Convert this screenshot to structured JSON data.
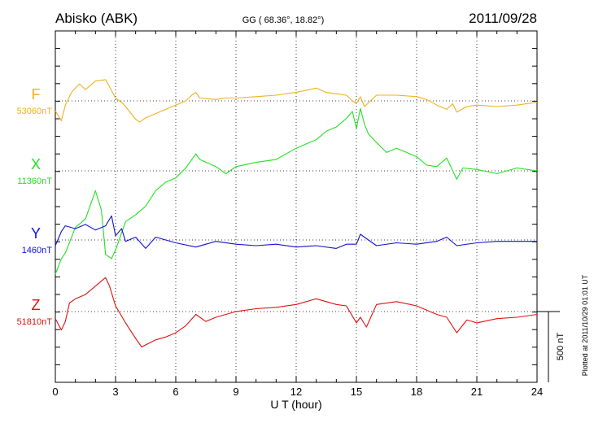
{
  "header": {
    "station": "Abisko (ABK)",
    "coords": "GG ( 68.36°,  18.82°)",
    "date": "2011/09/28"
  },
  "footer": {
    "plotted": "Plotted at 2011/10/29 01:01  UT",
    "scale_label": "500 nT"
  },
  "colors": {
    "F": "#f0b020",
    "X": "#22e022",
    "Y": "#1010d0",
    "Z": "#e01010",
    "axis": "#000000"
  },
  "chart_data": {
    "type": "line",
    "title": "Abisko (ABK)",
    "xlabel": "U T (hour)",
    "ylabel": "",
    "xlim": [
      0,
      24
    ],
    "xticks": [
      0,
      3,
      6,
      9,
      12,
      15,
      18,
      21,
      24
    ],
    "grid": true,
    "scale_bar_nT": 500,
    "series": [
      {
        "name": "F",
        "baseline_label": "53060nT",
        "x": [
          0,
          0.3,
          0.5,
          0.8,
          1.2,
          1.5,
          2.0,
          2.5,
          2.7,
          3.0,
          3.3,
          3.5,
          4.0,
          4.2,
          4.5,
          5.0,
          5.5,
          6.0,
          6.5,
          6.8,
          7.0,
          7.2,
          8.0,
          8.5,
          9.0,
          10.0,
          11.0,
          12.0,
          13.0,
          13.5,
          14.0,
          14.5,
          14.8,
          15.0,
          15.2,
          15.4,
          16.0,
          17.0,
          18.0,
          18.5,
          19.0,
          19.5,
          19.8,
          20.0,
          20.5,
          21.0,
          22.0,
          23.0,
          24.0
        ],
        "values": [
          -70,
          -140,
          -30,
          60,
          120,
          80,
          140,
          150,
          100,
          20,
          -10,
          -40,
          -130,
          -150,
          -120,
          -90,
          -60,
          -30,
          0,
          40,
          60,
          20,
          10,
          20,
          20,
          30,
          40,
          60,
          90,
          60,
          50,
          40,
          0,
          -20,
          30,
          -40,
          40,
          40,
          30,
          10,
          -30,
          -60,
          -20,
          -80,
          -40,
          -30,
          -40,
          -30,
          -10
        ]
      },
      {
        "name": "X",
        "baseline_label": "11360nT",
        "x": [
          0,
          0.3,
          0.5,
          1.0,
          1.5,
          2.0,
          2.3,
          2.5,
          2.8,
          3.0,
          3.5,
          4.0,
          4.5,
          5.0,
          5.5,
          6.0,
          6.5,
          7.0,
          7.2,
          8.0,
          8.5,
          9.0,
          10.0,
          11.0,
          12.0,
          12.5,
          13.0,
          13.5,
          14.0,
          14.5,
          14.8,
          15.0,
          15.2,
          15.4,
          15.6,
          16.0,
          16.5,
          17.0,
          18.0,
          18.5,
          19.0,
          19.5,
          20.0,
          20.3,
          21.0,
          22.0,
          23.0,
          24.0
        ],
        "values": [
          -730,
          -620,
          -580,
          -400,
          -340,
          -140,
          -280,
          -590,
          -620,
          -560,
          -360,
          -310,
          -250,
          -140,
          -80,
          -50,
          20,
          120,
          80,
          30,
          -20,
          30,
          60,
          80,
          160,
          190,
          220,
          280,
          310,
          370,
          420,
          300,
          440,
          330,
          260,
          200,
          130,
          160,
          100,
          40,
          30,
          90,
          -60,
          20,
          10,
          -20,
          20,
          0
        ]
      },
      {
        "name": "Y",
        "baseline_label": "1460nT",
        "x": [
          0,
          0.3,
          0.5,
          1.0,
          1.5,
          2.0,
          2.5,
          2.8,
          3.0,
          3.3,
          3.5,
          4.0,
          4.5,
          5.0,
          6.0,
          7.0,
          8.0,
          9.0,
          10.0,
          11.0,
          12.0,
          13.0,
          14.0,
          14.5,
          15.0,
          15.2,
          16.0,
          17.0,
          18.0,
          19.0,
          19.5,
          20.0,
          21.0,
          22.0,
          24.0
        ],
        "values": [
          -40,
          60,
          100,
          80,
          110,
          70,
          100,
          170,
          30,
          80,
          -10,
          20,
          -60,
          20,
          -20,
          -50,
          -10,
          -30,
          -40,
          -30,
          -50,
          -40,
          -60,
          -30,
          -30,
          40,
          -40,
          -20,
          -30,
          -10,
          20,
          -40,
          -20,
          -10,
          -10
        ]
      },
      {
        "name": "Z",
        "baseline_label": "51810nT",
        "x": [
          0,
          0.3,
          0.5,
          0.7,
          1.0,
          1.5,
          2.0,
          2.5,
          2.7,
          3.0,
          3.5,
          4.0,
          4.3,
          5.0,
          5.5,
          6.0,
          6.5,
          7.0,
          7.5,
          8.0,
          9.0,
          10.0,
          11.0,
          12.0,
          13.0,
          14.0,
          14.5,
          15.0,
          15.2,
          15.5,
          16.0,
          17.0,
          18.0,
          19.0,
          19.5,
          20.0,
          20.5,
          21.0,
          22.0,
          23.0,
          24.0
        ],
        "values": [
          -50,
          -130,
          -70,
          60,
          90,
          120,
          180,
          240,
          180,
          40,
          -80,
          -190,
          -250,
          -200,
          -180,
          -150,
          -100,
          -20,
          -70,
          -40,
          0,
          20,
          30,
          50,
          90,
          50,
          40,
          -80,
          -40,
          -110,
          50,
          70,
          40,
          -20,
          -40,
          -150,
          -60,
          -80,
          -50,
          -40,
          -20
        ]
      }
    ]
  }
}
